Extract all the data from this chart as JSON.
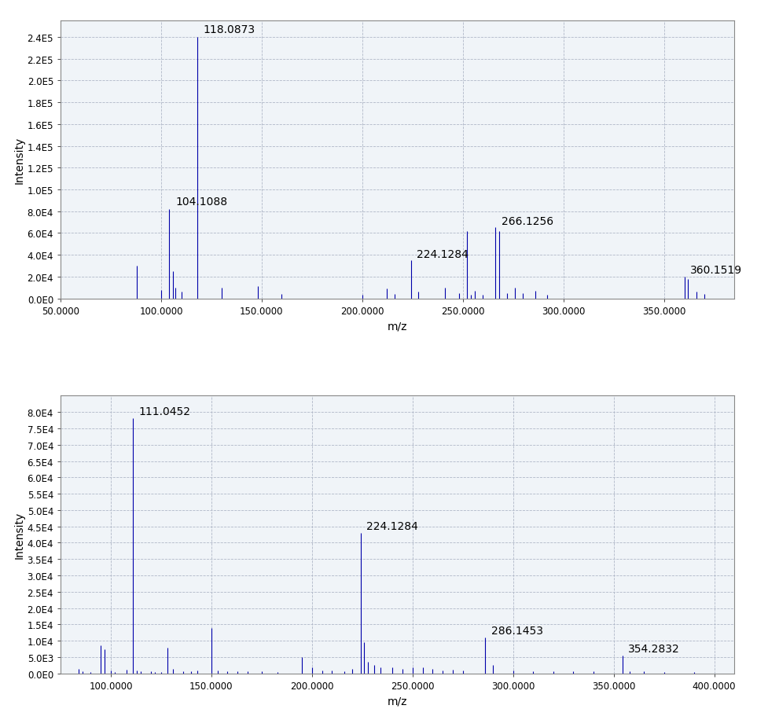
{
  "plot1": {
    "xlim": [
      50.0,
      385.0
    ],
    "ylim": [
      0,
      255000
    ],
    "yticks": [
      0,
      20000,
      40000,
      60000,
      80000,
      100000,
      120000,
      140000,
      160000,
      180000,
      200000,
      220000,
      240000
    ],
    "ytick_labels": [
      "0.0E0",
      "2.0E4",
      "4.0E4",
      "6.0E4",
      "8.0E4",
      "1.0E5",
      "1.2E5",
      "1.4E5",
      "1.6E5",
      "1.8E5",
      "2.0E5",
      "2.2E5",
      "2.4E5"
    ],
    "xticks": [
      50.0,
      100.0,
      150.0,
      200.0,
      250.0,
      300.0,
      350.0
    ],
    "xlabel": "m/z",
    "ylabel": "Intensity",
    "peaks": [
      {
        "mz": 88.0,
        "intensity": 30000,
        "label": null
      },
      {
        "mz": 100.0,
        "intensity": 8000,
        "label": null
      },
      {
        "mz": 104.1088,
        "intensity": 82000,
        "label": "104.1088"
      },
      {
        "mz": 106.0,
        "intensity": 25000,
        "label": null
      },
      {
        "mz": 107.0,
        "intensity": 10000,
        "label": null
      },
      {
        "mz": 110.0,
        "intensity": 6000,
        "label": null
      },
      {
        "mz": 118.0873,
        "intensity": 240000,
        "label": "118.0873"
      },
      {
        "mz": 130.0,
        "intensity": 10000,
        "label": null
      },
      {
        "mz": 148.0,
        "intensity": 11000,
        "label": null
      },
      {
        "mz": 160.0,
        "intensity": 4000,
        "label": null
      },
      {
        "mz": 200.0,
        "intensity": 3000,
        "label": null
      },
      {
        "mz": 212.0,
        "intensity": 9000,
        "label": null
      },
      {
        "mz": 216.0,
        "intensity": 4000,
        "label": null
      },
      {
        "mz": 224.1284,
        "intensity": 35000,
        "label": "224.1284"
      },
      {
        "mz": 228.0,
        "intensity": 6000,
        "label": null
      },
      {
        "mz": 241.0,
        "intensity": 10000,
        "label": null
      },
      {
        "mz": 248.0,
        "intensity": 5000,
        "label": null
      },
      {
        "mz": 252.0,
        "intensity": 62000,
        "label": null
      },
      {
        "mz": 254.0,
        "intensity": 3000,
        "label": null
      },
      {
        "mz": 256.0,
        "intensity": 7000,
        "label": null
      },
      {
        "mz": 260.0,
        "intensity": 3000,
        "label": null
      },
      {
        "mz": 266.1256,
        "intensity": 65000,
        "label": "266.1256"
      },
      {
        "mz": 268.0,
        "intensity": 62000,
        "label": null
      },
      {
        "mz": 272.0,
        "intensity": 5000,
        "label": null
      },
      {
        "mz": 276.0,
        "intensity": 10000,
        "label": null
      },
      {
        "mz": 280.0,
        "intensity": 5000,
        "label": null
      },
      {
        "mz": 286.0,
        "intensity": 7000,
        "label": null
      },
      {
        "mz": 292.0,
        "intensity": 3000,
        "label": null
      },
      {
        "mz": 360.1519,
        "intensity": 20000,
        "label": "360.1519"
      },
      {
        "mz": 362.0,
        "intensity": 18000,
        "label": null
      },
      {
        "mz": 366.0,
        "intensity": 6000,
        "label": null
      },
      {
        "mz": 370.0,
        "intensity": 4000,
        "label": null
      }
    ],
    "annot_offsets": {
      "118.0873": [
        3,
        2000
      ],
      "104.1088": [
        3,
        2000
      ],
      "224.1284": [
        3,
        1000
      ],
      "266.1256": [
        3,
        1000
      ],
      "360.1519": [
        3,
        1000
      ]
    }
  },
  "plot2": {
    "xlim": [
      75.0,
      410.0
    ],
    "ylim": [
      0,
      85000
    ],
    "yticks": [
      0,
      5000,
      10000,
      15000,
      20000,
      25000,
      30000,
      35000,
      40000,
      45000,
      50000,
      55000,
      60000,
      65000,
      70000,
      75000,
      80000
    ],
    "ytick_labels": [
      "0.0E0",
      "5.0E3",
      "1.0E4",
      "1.5E4",
      "2.0E4",
      "2.5E4",
      "3.0E4",
      "3.5E4",
      "4.0E4",
      "4.5E4",
      "5.0E4",
      "5.5E4",
      "6.0E4",
      "6.5E4",
      "7.0E4",
      "7.5E4",
      "8.0E4"
    ],
    "xticks": [
      100.0,
      150.0,
      200.0,
      250.0,
      300.0,
      350.0,
      400.0
    ],
    "xlabel": "m/z",
    "ylabel": "Intensity",
    "peaks": [
      {
        "mz": 84.0,
        "intensity": 1500,
        "label": null
      },
      {
        "mz": 86.0,
        "intensity": 800,
        "label": null
      },
      {
        "mz": 90.0,
        "intensity": 500,
        "label": null
      },
      {
        "mz": 95.0,
        "intensity": 8500,
        "label": null
      },
      {
        "mz": 97.0,
        "intensity": 7500,
        "label": null
      },
      {
        "mz": 100.0,
        "intensity": 1000,
        "label": null
      },
      {
        "mz": 102.0,
        "intensity": 500,
        "label": null
      },
      {
        "mz": 108.0,
        "intensity": 1200,
        "label": null
      },
      {
        "mz": 111.0452,
        "intensity": 78000,
        "label": "111.0452"
      },
      {
        "mz": 113.0,
        "intensity": 1000,
        "label": null
      },
      {
        "mz": 115.0,
        "intensity": 600,
        "label": null
      },
      {
        "mz": 120.0,
        "intensity": 600,
        "label": null
      },
      {
        "mz": 122.0,
        "intensity": 500,
        "label": null
      },
      {
        "mz": 125.0,
        "intensity": 500,
        "label": null
      },
      {
        "mz": 128.0,
        "intensity": 8000,
        "label": null
      },
      {
        "mz": 131.0,
        "intensity": 1500,
        "label": null
      },
      {
        "mz": 136.0,
        "intensity": 700,
        "label": null
      },
      {
        "mz": 140.0,
        "intensity": 700,
        "label": null
      },
      {
        "mz": 143.0,
        "intensity": 1000,
        "label": null
      },
      {
        "mz": 150.0,
        "intensity": 14000,
        "label": null
      },
      {
        "mz": 153.0,
        "intensity": 1000,
        "label": null
      },
      {
        "mz": 158.0,
        "intensity": 700,
        "label": null
      },
      {
        "mz": 163.0,
        "intensity": 700,
        "label": null
      },
      {
        "mz": 168.0,
        "intensity": 700,
        "label": null
      },
      {
        "mz": 175.0,
        "intensity": 700,
        "label": null
      },
      {
        "mz": 183.0,
        "intensity": 500,
        "label": null
      },
      {
        "mz": 195.0,
        "intensity": 5000,
        "label": null
      },
      {
        "mz": 200.0,
        "intensity": 2000,
        "label": null
      },
      {
        "mz": 205.0,
        "intensity": 1000,
        "label": null
      },
      {
        "mz": 210.0,
        "intensity": 900,
        "label": null
      },
      {
        "mz": 216.0,
        "intensity": 800,
        "label": null
      },
      {
        "mz": 220.0,
        "intensity": 1500,
        "label": null
      },
      {
        "mz": 224.1284,
        "intensity": 43000,
        "label": "224.1284"
      },
      {
        "mz": 226.0,
        "intensity": 9500,
        "label": null
      },
      {
        "mz": 228.0,
        "intensity": 3500,
        "label": null
      },
      {
        "mz": 231.0,
        "intensity": 2500,
        "label": null
      },
      {
        "mz": 234.0,
        "intensity": 2000,
        "label": null
      },
      {
        "mz": 240.0,
        "intensity": 2000,
        "label": null
      },
      {
        "mz": 245.0,
        "intensity": 1500,
        "label": null
      },
      {
        "mz": 250.0,
        "intensity": 2000,
        "label": null
      },
      {
        "mz": 255.0,
        "intensity": 2000,
        "label": null
      },
      {
        "mz": 260.0,
        "intensity": 1500,
        "label": null
      },
      {
        "mz": 265.0,
        "intensity": 1000,
        "label": null
      },
      {
        "mz": 270.0,
        "intensity": 1200,
        "label": null
      },
      {
        "mz": 275.0,
        "intensity": 1000,
        "label": null
      },
      {
        "mz": 286.1453,
        "intensity": 11000,
        "label": "286.1453"
      },
      {
        "mz": 290.0,
        "intensity": 2500,
        "label": null
      },
      {
        "mz": 300.0,
        "intensity": 1000,
        "label": null
      },
      {
        "mz": 310.0,
        "intensity": 700,
        "label": null
      },
      {
        "mz": 320.0,
        "intensity": 700,
        "label": null
      },
      {
        "mz": 330.0,
        "intensity": 700,
        "label": null
      },
      {
        "mz": 340.0,
        "intensity": 700,
        "label": null
      },
      {
        "mz": 354.2832,
        "intensity": 5500,
        "label": "354.2832"
      },
      {
        "mz": 358.0,
        "intensity": 800,
        "label": null
      },
      {
        "mz": 365.0,
        "intensity": 600,
        "label": null
      },
      {
        "mz": 375.0,
        "intensity": 500,
        "label": null
      },
      {
        "mz": 390.0,
        "intensity": 400,
        "label": null
      }
    ],
    "annot_offsets": {
      "111.0452": [
        3,
        500
      ],
      "224.1284": [
        3,
        500
      ],
      "286.1453": [
        3,
        500
      ],
      "354.2832": [
        3,
        500
      ]
    }
  },
  "line_color": "#0000AA",
  "label_color": "#000000",
  "bg_color": "#ffffff",
  "plot_bg_color": "#f0f4f8",
  "grid_color": "#b0b8c8",
  "font_size_tick": 8.5,
  "font_size_label": 10,
  "font_size_annot": 10
}
